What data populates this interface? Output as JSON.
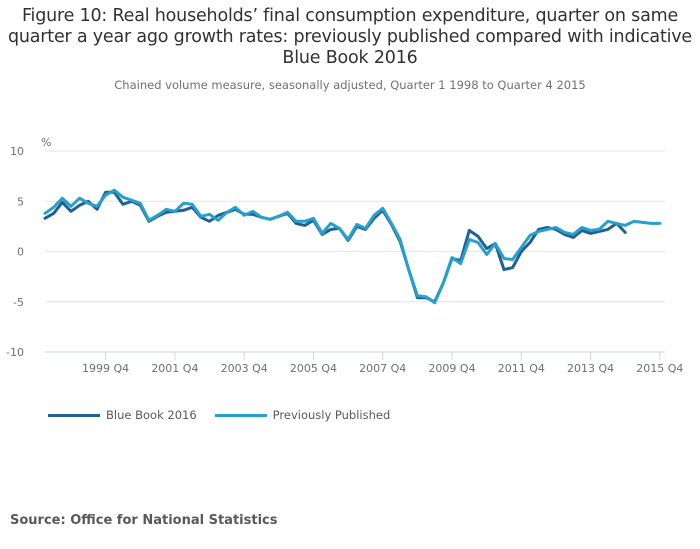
{
  "header": {
    "title": "Figure 10: Real households’ final consumption expenditure, quarter on same quarter a year ago growth rates: previously published compared with indicative Blue Book 2016",
    "subtitle": "Chained volume measure, seasonally adjusted, Quarter 1 1998 to Quarter 4 2015"
  },
  "source": "Source: Office for National Statistics",
  "colors": {
    "blue_book_2016": "#206095",
    "previously_published": "#27a0cc",
    "gridline": "#e6e6e6",
    "axis": "#ccd6eb"
  },
  "chart_data": {
    "type": "line",
    "title": "Figure 10: Real households’ final consumption expenditure, quarter on same quarter a year ago growth rates: previously published compared with indicative Blue Book 2016",
    "subtitle": "Chained volume measure, seasonally adjusted, Quarter 1 1998 to Quarter 4 2015",
    "xlabel": "",
    "ylabel": "%",
    "ylim": [
      -10,
      10
    ],
    "yticks": [
      10,
      5,
      0,
      -5,
      -10
    ],
    "xtick_labels": [
      "1999 Q4",
      "2001 Q4",
      "2003 Q4",
      "2005 Q4",
      "2007 Q4",
      "2009 Q4",
      "2011 Q4",
      "2013 Q4",
      "2015 Q4"
    ],
    "grid": true,
    "legend_position": "bottom-left",
    "x_start": "1998 Q1",
    "x_end": "2015 Q4",
    "series": [
      {
        "name": "Blue Book 2016",
        "values": [
          3.3,
          3.8,
          4.9,
          4.0,
          4.6,
          5.0,
          4.2,
          5.9,
          5.9,
          4.7,
          5.0,
          4.6,
          3.0,
          3.5,
          3.9,
          4.0,
          4.1,
          4.4,
          3.4,
          3.0,
          3.6,
          3.9,
          4.2,
          3.7,
          3.7,
          3.4,
          3.2,
          3.5,
          3.8,
          2.8,
          2.6,
          3.1,
          1.7,
          2.2,
          2.3,
          1.1,
          2.5,
          2.2,
          3.3,
          4.1,
          2.7,
          1.0,
          -1.8,
          -4.6,
          -4.6,
          -5.0,
          -3.1,
          -0.7,
          -0.9,
          2.1,
          1.5,
          0.3,
          0.8,
          -1.8,
          -1.6,
          0.0,
          0.9,
          2.2,
          2.4,
          2.2,
          1.7,
          1.4,
          2.1,
          1.8,
          2.0,
          2.2,
          2.8,
          1.9,
          null,
          null,
          null,
          null
        ]
      },
      {
        "name": "Previously Published",
        "values": [
          3.8,
          4.4,
          5.3,
          4.5,
          5.3,
          4.8,
          4.5,
          5.6,
          6.1,
          5.4,
          5.1,
          4.8,
          3.1,
          3.6,
          4.2,
          4.0,
          4.8,
          4.7,
          3.5,
          3.7,
          3.1,
          3.9,
          4.4,
          3.6,
          4.0,
          3.4,
          3.2,
          3.5,
          3.9,
          3.0,
          3.0,
          3.3,
          1.8,
          2.8,
          2.3,
          1.2,
          2.7,
          2.3,
          3.6,
          4.3,
          2.8,
          1.2,
          -1.8,
          -4.4,
          -4.5,
          -5.1,
          -3.1,
          -0.6,
          -1.2,
          1.2,
          0.9,
          -0.3,
          0.8,
          -0.7,
          -0.8,
          0.4,
          1.6,
          2.0,
          2.2,
          2.4,
          1.9,
          1.7,
          2.4,
          2.1,
          2.2,
          3.0,
          2.8,
          2.6,
          3.0,
          2.9,
          2.8,
          2.8
        ]
      }
    ]
  }
}
